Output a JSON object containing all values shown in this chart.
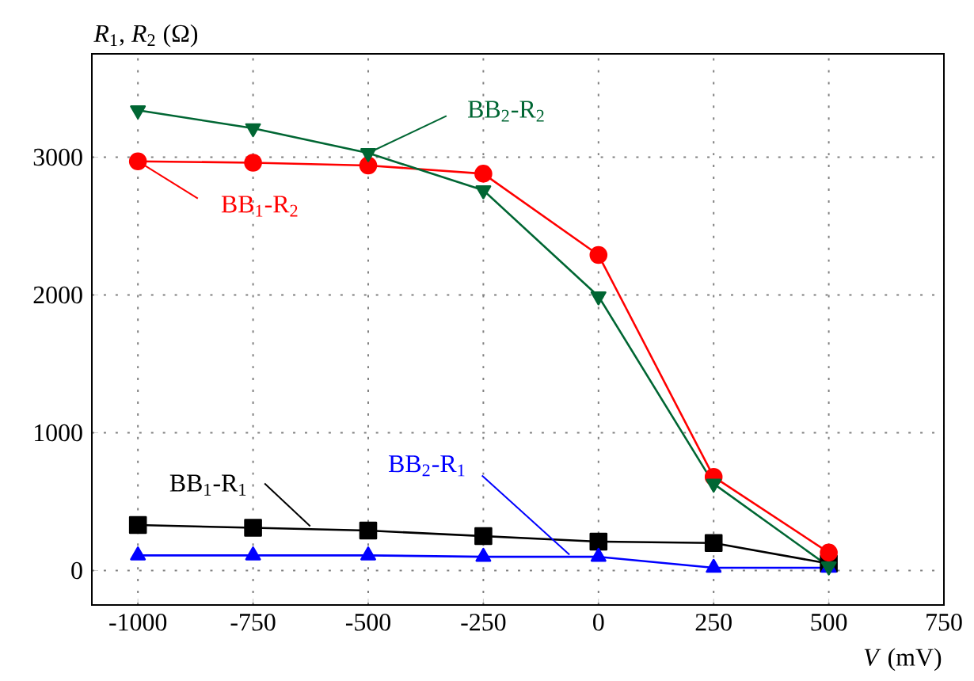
{
  "chart_data": {
    "type": "line",
    "xlabel": "*V* (mV)",
    "ylabel": "*R*$_{1}$, *R*$_{2}$ (Ω)",
    "x": [
      -1000,
      -750,
      -500,
      -250,
      0,
      250,
      500
    ],
    "series": [
      {
        "name": "BB$_{1}$-R$_{2}$",
        "color": "#ff0000",
        "marker": "circle",
        "values": [
          2970,
          2960,
          2940,
          2880,
          2290,
          680,
          130
        ]
      },
      {
        "name": "BB$_{2}$-R$_{2}$",
        "color": "#006633",
        "marker": "triangle-down",
        "values": [
          3340,
          3210,
          3030,
          2760,
          1990,
          630,
          30
        ]
      },
      {
        "name": "BB$_{1}$-R$_{1}$",
        "color": "#000000",
        "marker": "square",
        "values": [
          330,
          310,
          290,
          250,
          210,
          200,
          50
        ]
      },
      {
        "name": "BB$_{2}$-R$_{1}$",
        "color": "#0000ff",
        "marker": "triangle",
        "values": [
          110,
          110,
          110,
          100,
          100,
          20,
          20
        ]
      }
    ],
    "xlim": [
      -1100,
      750
    ],
    "ylim": [
      -250,
      3750
    ],
    "xticks": [
      -1000,
      -750,
      -500,
      -250,
      0,
      250,
      500,
      750
    ],
    "yticks": [
      0,
      1000,
      2000,
      3000
    ],
    "grid": true,
    "line_style": "solid"
  }
}
